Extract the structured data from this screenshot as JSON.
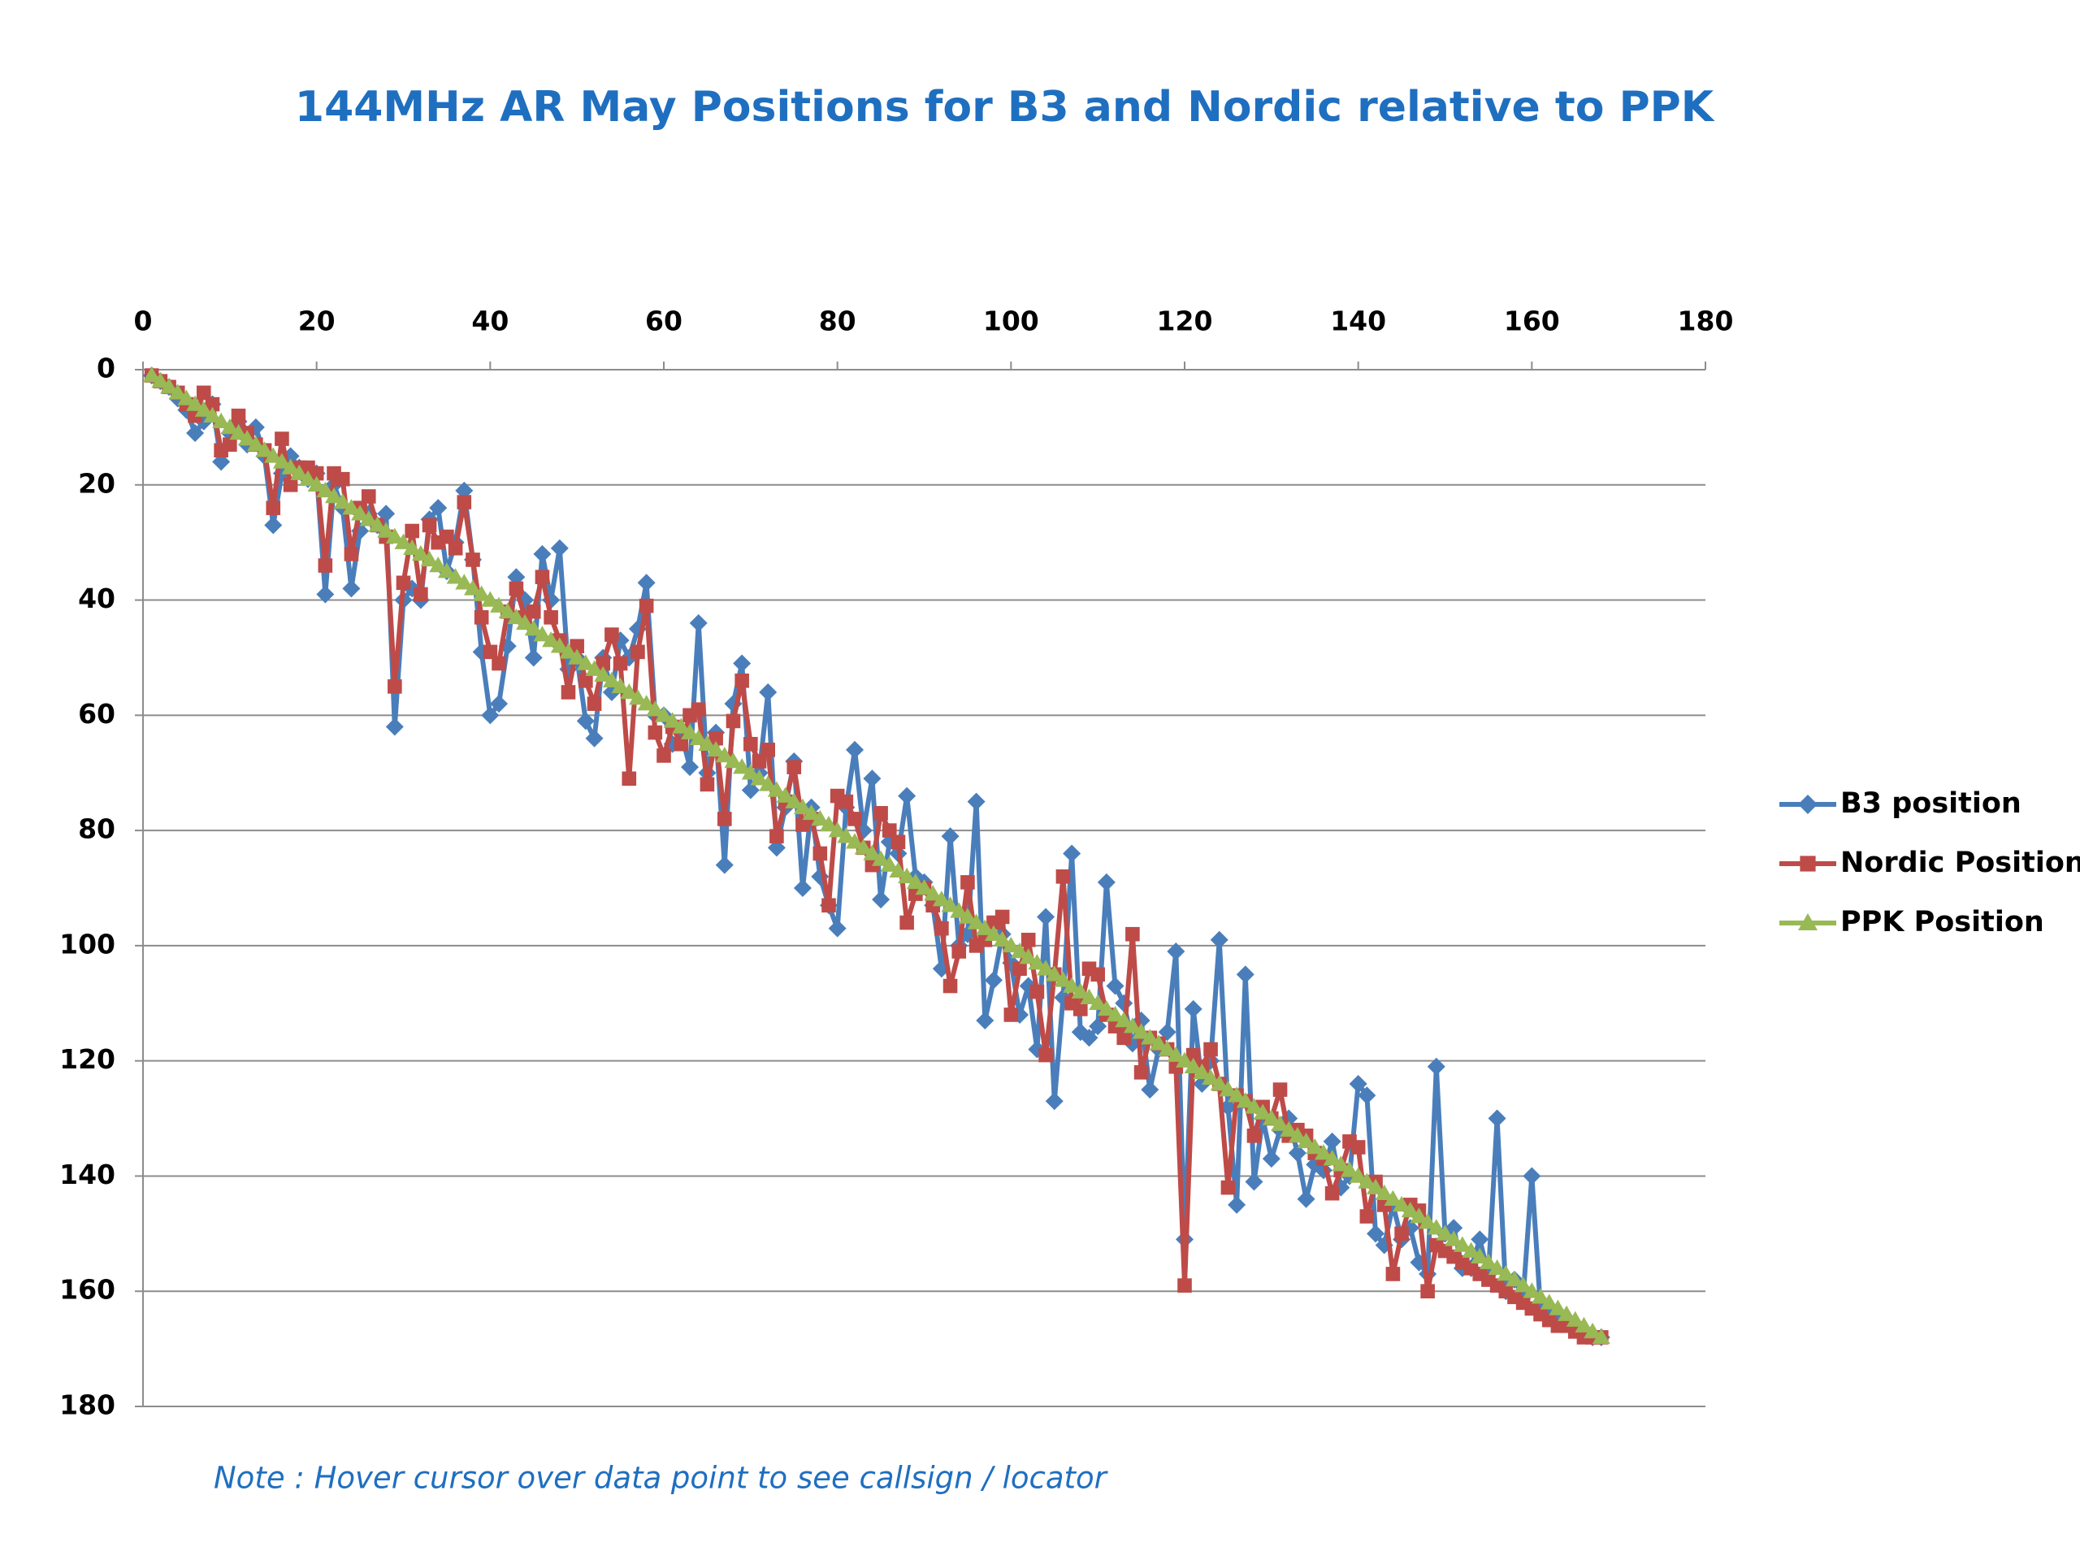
{
  "chart_data": {
    "type": "line",
    "title": "144MHz AR May Positions for B3 and Nordic relative to PPK",
    "note": "Note : Hover cursor over data point to see callsign / locator",
    "x": [
      1,
      2,
      3,
      4,
      5,
      6,
      7,
      8,
      9,
      10,
      11,
      12,
      13,
      14,
      15,
      16,
      17,
      18,
      19,
      20,
      21,
      22,
      23,
      24,
      25,
      26,
      27,
      28,
      29,
      30,
      31,
      32,
      33,
      34,
      35,
      36,
      37,
      38,
      39,
      40,
      41,
      42,
      43,
      44,
      45,
      46,
      47,
      48,
      49,
      50,
      51,
      52,
      53,
      54,
      55,
      56,
      57,
      58,
      59,
      60,
      61,
      62,
      63,
      64,
      65,
      66,
      67,
      68,
      69,
      70,
      71,
      72,
      73,
      74,
      75,
      76,
      77,
      78,
      79,
      80,
      81,
      82,
      83,
      84,
      85,
      86,
      87,
      88,
      89,
      90,
      91,
      92,
      93,
      94,
      95,
      96,
      97,
      98,
      99,
      100,
      101,
      102,
      103,
      104,
      105,
      106,
      107,
      108,
      109,
      110,
      111,
      112,
      113,
      114,
      115,
      116,
      117,
      118,
      119,
      120,
      121,
      122,
      123,
      124,
      125,
      126,
      127,
      128,
      129,
      130,
      131,
      132,
      133,
      134,
      135,
      136,
      137,
      138,
      139,
      140,
      141,
      142,
      143,
      144,
      145,
      146,
      147,
      148,
      149,
      150,
      151,
      152,
      153,
      154,
      155,
      156,
      157,
      158,
      159,
      160,
      161,
      162,
      163,
      164,
      165,
      166,
      167,
      168
    ],
    "series": [
      {
        "name": "B3 position",
        "color": "#4a7ebb",
        "marker": "diamond",
        "values": [
          1,
          2,
          3,
          5,
          7,
          11,
          9,
          6,
          16,
          11,
          9,
          13,
          10,
          15,
          27,
          18,
          15,
          17,
          19,
          18,
          39,
          20,
          24,
          38,
          28,
          25,
          27,
          25,
          62,
          40,
          38,
          40,
          26,
          24,
          35,
          30,
          21,
          33,
          49,
          60,
          58,
          48,
          36,
          40,
          50,
          32,
          40,
          31,
          52,
          50,
          61,
          64,
          50,
          56,
          47,
          50,
          45,
          37,
          60,
          60,
          65,
          63,
          69,
          44,
          70,
          63,
          86,
          58,
          51,
          73,
          70,
          56,
          83,
          76,
          68,
          90,
          76,
          88,
          93,
          97,
          76,
          66,
          80,
          71,
          92,
          82,
          84,
          74,
          88,
          89,
          93,
          104,
          81,
          100,
          98,
          75,
          113,
          106,
          98,
          103,
          112,
          107,
          118,
          95,
          127,
          109,
          84,
          115,
          116,
          114,
          89,
          107,
          110,
          117,
          113,
          125,
          118,
          115,
          101,
          151,
          111,
          124,
          120,
          99,
          128,
          145,
          105,
          141,
          130,
          137,
          132,
          130,
          136,
          144,
          138,
          139,
          134,
          142,
          140,
          124,
          126,
          150,
          152,
          145,
          151,
          149,
          155,
          157,
          121,
          150,
          149,
          156,
          156,
          151,
          157,
          130,
          160,
          158,
          161,
          140,
          163,
          164,
          165,
          165,
          166,
          167,
          168,
          168
        ]
      },
      {
        "name": "Nordic Position",
        "color": "#be4b48",
        "marker": "square",
        "values": [
          1,
          2,
          3,
          4,
          6,
          8,
          4,
          6,
          14,
          13,
          8,
          11,
          13,
          14,
          24,
          12,
          20,
          17,
          17,
          18,
          34,
          18,
          19,
          32,
          24,
          22,
          27,
          29,
          55,
          37,
          28,
          39,
          27,
          30,
          29,
          31,
          23,
          33,
          43,
          49,
          51,
          42,
          38,
          43,
          42,
          36,
          43,
          47,
          56,
          48,
          54,
          58,
          51,
          46,
          51,
          71,
          49,
          41,
          63,
          67,
          62,
          65,
          60,
          59,
          72,
          64,
          78,
          61,
          54,
          65,
          68,
          66,
          81,
          75,
          69,
          79,
          78,
          84,
          93,
          74,
          75,
          78,
          83,
          86,
          77,
          80,
          82,
          96,
          91,
          90,
          93,
          97,
          107,
          101,
          89,
          100,
          99,
          96,
          95,
          112,
          104,
          99,
          108,
          119,
          105,
          88,
          110,
          111,
          104,
          105,
          112,
          114,
          116,
          98,
          122,
          116,
          117,
          118,
          121,
          159,
          119,
          121,
          118,
          124,
          142,
          126,
          127,
          133,
          128,
          130,
          125,
          133,
          132,
          133,
          136,
          137,
          143,
          139,
          134,
          135,
          147,
          141,
          145,
          157,
          150,
          145,
          146,
          160,
          152,
          153,
          154,
          155,
          156,
          157,
          158,
          159,
          160,
          161,
          162,
          163,
          164,
          165,
          166,
          166,
          167,
          168,
          168,
          168
        ]
      },
      {
        "name": "PPK Position",
        "color": "#98b954",
        "marker": "triangle",
        "values": [
          1,
          2,
          3,
          4,
          5,
          6,
          7,
          8,
          9,
          10,
          11,
          12,
          13,
          14,
          15,
          16,
          17,
          18,
          19,
          20,
          21,
          22,
          23,
          24,
          25,
          26,
          27,
          28,
          29,
          30,
          31,
          32,
          33,
          34,
          35,
          36,
          37,
          38,
          39,
          40,
          41,
          42,
          43,
          44,
          45,
          46,
          47,
          48,
          49,
          50,
          51,
          52,
          53,
          54,
          55,
          56,
          57,
          58,
          59,
          60,
          61,
          62,
          63,
          64,
          65,
          66,
          67,
          68,
          69,
          70,
          71,
          72,
          73,
          74,
          75,
          76,
          77,
          78,
          79,
          80,
          81,
          82,
          83,
          84,
          85,
          86,
          87,
          88,
          89,
          90,
          91,
          92,
          93,
          94,
          95,
          96,
          97,
          98,
          99,
          100,
          101,
          102,
          103,
          104,
          105,
          106,
          107,
          108,
          109,
          110,
          111,
          112,
          113,
          114,
          115,
          116,
          117,
          118,
          119,
          120,
          121,
          122,
          123,
          124,
          125,
          126,
          127,
          128,
          129,
          130,
          131,
          132,
          133,
          134,
          135,
          136,
          137,
          138,
          139,
          140,
          141,
          142,
          143,
          144,
          145,
          146,
          147,
          148,
          149,
          150,
          151,
          152,
          153,
          154,
          155,
          156,
          157,
          158,
          159,
          160,
          161,
          162,
          163,
          164,
          165,
          166,
          167,
          168
        ]
      }
    ],
    "xlim": [
      0,
      180
    ],
    "xticks": [
      0,
      20,
      40,
      60,
      80,
      100,
      120,
      140,
      160,
      180
    ],
    "ylim": [
      0,
      180
    ],
    "yticks": [
      0,
      20,
      40,
      60,
      80,
      100,
      120,
      140,
      160,
      180
    ],
    "y_inverted": true,
    "x_axis_position": "top",
    "grid": true,
    "legend": "right"
  }
}
